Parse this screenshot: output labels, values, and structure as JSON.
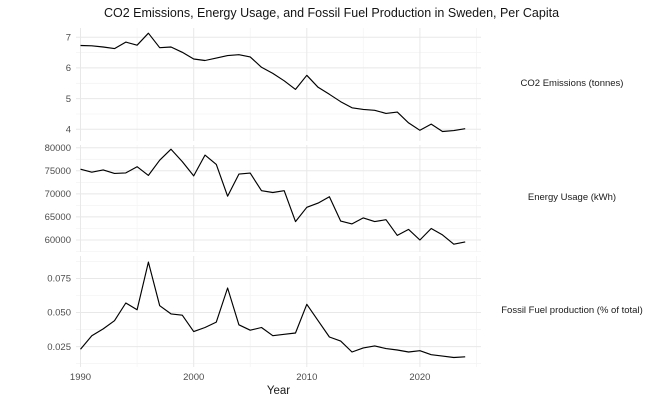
{
  "title": "CO2 Emissions, Energy Usage, and Fossil Fuel Production in Sweden, Per Capita",
  "colors": {
    "background": "#ffffff",
    "line": "#000000",
    "grid_major": "#e8e8e8",
    "grid_minor": "#f4f4f4",
    "axis_text": "#4d4d4d",
    "strip_text": "#1a1a1a",
    "title_text": "#141414"
  },
  "chart_data": {
    "type": "line",
    "title": "CO2 Emissions, Energy Usage, and Fossil Fuel Production in Sweden, Per Capita",
    "xlabel": "Year",
    "grid": true,
    "legend_position": "right-facet-strips",
    "xlim": [
      1989.6,
      2025.4
    ],
    "x_ticks": [
      {
        "label": "1990",
        "value": 1990
      },
      {
        "label": "2000",
        "value": 2000
      },
      {
        "label": "2010",
        "value": 2010
      },
      {
        "label": "2020",
        "value": 2020
      }
    ],
    "x_minor": [
      1995,
      2005,
      2015,
      2025
    ],
    "x": [
      1990,
      1991,
      1992,
      1993,
      1994,
      1995,
      1996,
      1997,
      1998,
      1999,
      2000,
      2001,
      2002,
      2003,
      2004,
      2005,
      2006,
      2007,
      2008,
      2009,
      2010,
      2011,
      2012,
      2013,
      2014,
      2015,
      2016,
      2017,
      2018,
      2019,
      2020,
      2021,
      2022,
      2023,
      2024
    ],
    "panels": [
      {
        "id": "co2",
        "strip_label": "CO2 Emissions (tonnes)",
        "ylim": [
          3.62,
          7.3
        ],
        "y_ticks": [
          {
            "label": "7",
            "value": 7
          },
          {
            "label": "6",
            "value": 6
          },
          {
            "label": "5",
            "value": 5
          },
          {
            "label": "4",
            "value": 4
          }
        ],
        "y_minor": [
          6.5,
          5.5,
          4.5
        ],
        "values": [
          6.73,
          6.72,
          6.68,
          6.63,
          6.84,
          6.74,
          7.13,
          6.66,
          6.68,
          6.51,
          6.29,
          6.24,
          6.32,
          6.4,
          6.43,
          6.36,
          6.02,
          5.82,
          5.58,
          5.3,
          5.76,
          5.37,
          5.14,
          4.9,
          4.7,
          4.65,
          4.62,
          4.52,
          4.56,
          4.21,
          3.97,
          4.17,
          3.93,
          3.96,
          4.02
        ]
      },
      {
        "id": "energy",
        "strip_label": "Energy Usage (kWh)",
        "ylim": [
          57400,
          80600
        ],
        "y_ticks": [
          {
            "label": "80000",
            "value": 80000
          },
          {
            "label": "75000",
            "value": 75000
          },
          {
            "label": "70000",
            "value": 70000
          },
          {
            "label": "65000",
            "value": 65000
          },
          {
            "label": "60000",
            "value": 60000
          }
        ],
        "y_minor": [
          77500,
          72500,
          67500,
          62500,
          57500
        ],
        "values": [
          75350,
          74700,
          75200,
          74450,
          74550,
          75900,
          74000,
          77300,
          79700,
          77000,
          73900,
          78400,
          76400,
          69500,
          74300,
          74500,
          70700,
          70300,
          70700,
          64000,
          67100,
          68000,
          69400,
          64100,
          63500,
          64800,
          64000,
          64400,
          61000,
          62300,
          60000,
          62500,
          61100,
          59100,
          59600
        ]
      },
      {
        "id": "fossil",
        "strip_label": "Fossil Fuel production (% of total)",
        "ylim": [
          0.01,
          0.0915
        ],
        "y_ticks": [
          {
            "label": "0.075",
            "value": 0.075
          },
          {
            "label": "0.050",
            "value": 0.05
          },
          {
            "label": "0.025",
            "value": 0.025
          }
        ],
        "y_minor": [
          0.0875,
          0.0625,
          0.0375,
          0.0125
        ],
        "values": [
          0.023,
          0.033,
          0.038,
          0.044,
          0.057,
          0.052,
          0.087,
          0.055,
          0.049,
          0.048,
          0.036,
          0.039,
          0.043,
          0.068,
          0.041,
          0.037,
          0.039,
          0.033,
          0.034,
          0.035,
          0.056,
          0.044,
          0.032,
          0.029,
          0.021,
          0.024,
          0.0255,
          0.0235,
          0.0225,
          0.021,
          0.022,
          0.019,
          0.018,
          0.017,
          0.0175
        ]
      }
    ]
  }
}
